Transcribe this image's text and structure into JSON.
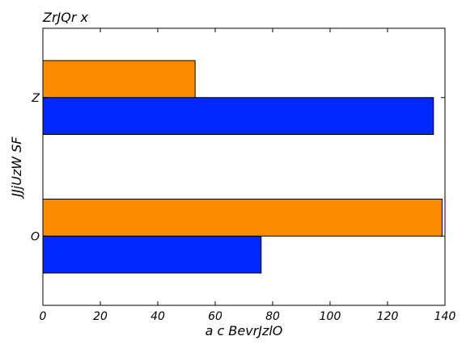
{
  "chart_data": {
    "type": "bar",
    "orientation": "horizontal",
    "title": "ZrJQr x",
    "xlabel": "a c  BevrJzlO",
    "ylabel": "JJjUzW SF",
    "categories": [
      "O",
      "Z"
    ],
    "series": [
      {
        "color": "#0328fe",
        "values": [
          76,
          136
        ]
      },
      {
        "color": "#ff8c00",
        "values": [
          139,
          53
        ]
      }
    ],
    "xlim": [
      0,
      140
    ],
    "xticks": [
      "0",
      "20",
      "40",
      "60",
      "80",
      "100",
      "120",
      "140"
    ],
    "grid": false,
    "legend": "none"
  }
}
